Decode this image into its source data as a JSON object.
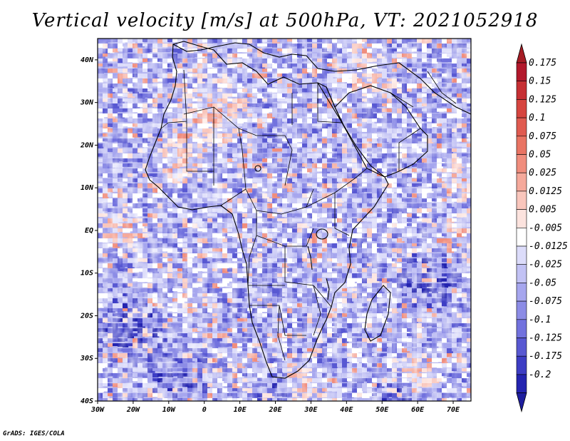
{
  "title": "Vertical velocity [m/s] at 500hPa, VT: 2021052918",
  "credit": "GrADS: IGES/COLA",
  "map": {
    "lon_range": [
      -30,
      75
    ],
    "lat_range": [
      -40,
      45
    ],
    "lat_ticks": [
      {
        "value": 40,
        "label": "40N"
      },
      {
        "value": 30,
        "label": "30N"
      },
      {
        "value": 20,
        "label": "20N"
      },
      {
        "value": 10,
        "label": "10N"
      },
      {
        "value": 0,
        "label": "EQ"
      },
      {
        "value": -10,
        "label": "10S"
      },
      {
        "value": -20,
        "label": "20S"
      },
      {
        "value": -30,
        "label": "30S"
      },
      {
        "value": -40,
        "label": "40S"
      }
    ],
    "lon_ticks": [
      {
        "value": -30,
        "label": "30W"
      },
      {
        "value": -20,
        "label": "20W"
      },
      {
        "value": -10,
        "label": "10W"
      },
      {
        "value": 0,
        "label": "0"
      },
      {
        "value": 10,
        "label": "10E"
      },
      {
        "value": 20,
        "label": "20E"
      },
      {
        "value": 30,
        "label": "30E"
      },
      {
        "value": 40,
        "label": "40E"
      },
      {
        "value": 50,
        "label": "50E"
      },
      {
        "value": 60,
        "label": "60E"
      },
      {
        "value": 70,
        "label": "70E"
      }
    ]
  },
  "colorbar": {
    "levels": [
      {
        "label": "0.175",
        "color": "#b2182b"
      },
      {
        "label": "0.15",
        "color": "#c62f33"
      },
      {
        "label": "0.125",
        "color": "#d6453f"
      },
      {
        "label": "0.1",
        "color": "#e05b50"
      },
      {
        "label": "0.075",
        "color": "#e97463"
      },
      {
        "label": "0.05",
        "color": "#f08d7d"
      },
      {
        "label": "0.025",
        "color": "#f5a99b"
      },
      {
        "label": "0.0125",
        "color": "#f9c6bc"
      },
      {
        "label": "0.005",
        "color": "#fce3de"
      },
      {
        "label": "-0.005",
        "color": "#ffffff"
      },
      {
        "label": "-0.0125",
        "color": "#dcdcfa"
      },
      {
        "label": "-0.025",
        "color": "#c2c2f4"
      },
      {
        "label": "-0.05",
        "color": "#a6a6ee"
      },
      {
        "label": "-0.075",
        "color": "#8c8ce6"
      },
      {
        "label": "-0.1",
        "color": "#7272de"
      },
      {
        "label": "-0.125",
        "color": "#5858d2"
      },
      {
        "label": "-0.175",
        "color": "#3d3dc4"
      },
      {
        "label": "-0.2",
        "color": "#2424b0"
      }
    ],
    "top_color": "#a51c24",
    "bottom_color": "#1e1e9e"
  },
  "colors": {
    "background": "#ffffff",
    "field_base": "#b4b4f0",
    "border": "#000000"
  }
}
